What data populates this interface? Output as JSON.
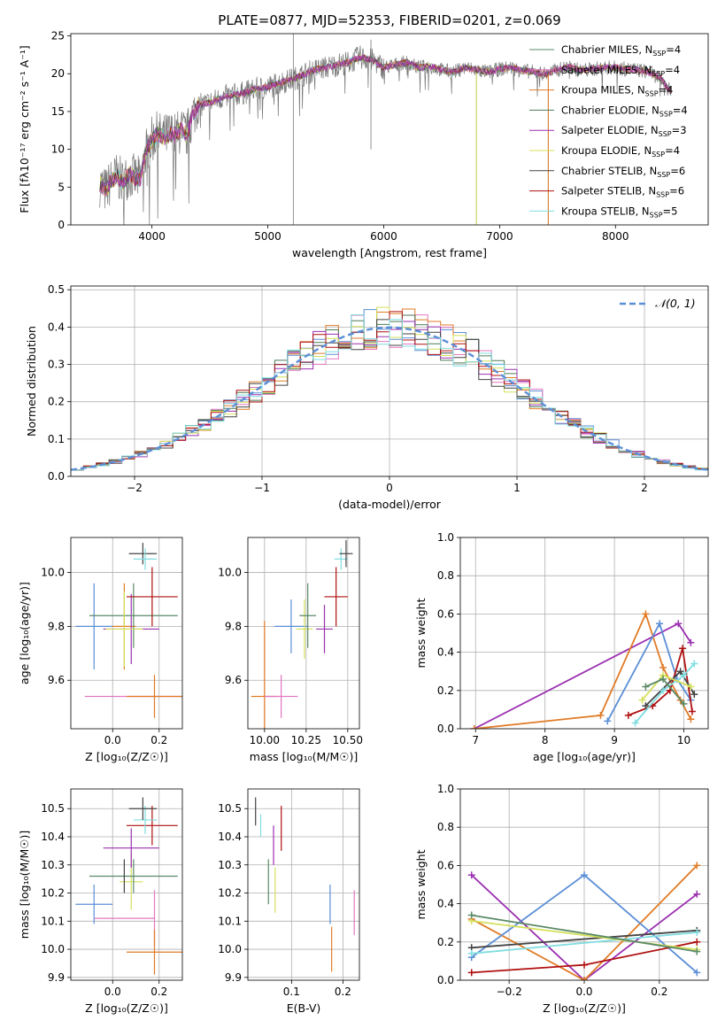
{
  "figure_title": "PLATE=0877, MJD=52353, FIBERID=0201, z=0.069",
  "models": [
    {
      "name": "Chabrier MILES, N",
      "sub": "SSP",
      "count": "=4",
      "color": "#5a8a66"
    },
    {
      "name": "Salpeter MILES, N",
      "sub": "SSP",
      "count": "=4",
      "color": "#e377c2"
    },
    {
      "name": "Kroupa MILES, N",
      "sub": "SSP",
      "count": "=4",
      "color": "#e07b26"
    },
    {
      "name": "Chabrier ELODIE, N",
      "sub": "SSP",
      "count": "=4",
      "color": "#4d7a57"
    },
    {
      "name": "Salpeter ELODIE, N",
      "sub": "SSP",
      "count": "=3",
      "color": "#9b30b0"
    },
    {
      "name": "Kroupa ELODIE, N",
      "sub": "SSP",
      "count": "=4",
      "color": "#d4e05a"
    },
    {
      "name": "Chabrier STELIB, N",
      "sub": "SSP",
      "count": "=6",
      "color": "#444444"
    },
    {
      "name": "Salpeter STELIB, N",
      "sub": "SSP",
      "count": "=6",
      "color": "#b01010"
    },
    {
      "name": "Kroupa STELIB, N",
      "sub": "SSP",
      "count": "=5",
      "color": "#7fdde0"
    }
  ],
  "chart_data": [
    {
      "id": "spectrum",
      "type": "line",
      "xlabel": "wavelength [Angstrom, rest frame]",
      "ylabel": "Flux [fλ10⁻¹⁷ erg cm⁻² s⁻¹ A⁻¹]",
      "xlim": [
        3300,
        8800
      ],
      "ylim": [
        0,
        25.3
      ],
      "xticks": [
        4000,
        5000,
        6000,
        7000,
        8000
      ],
      "yticks": [
        0,
        5,
        10,
        15,
        20,
        25
      ],
      "grid": false,
      "legend": "right",
      "envelope": {
        "x": [
          3550,
          3600,
          3650,
          3700,
          3750,
          3800,
          3850,
          3900,
          3950,
          4000,
          4050,
          4100,
          4150,
          4200,
          4250,
          4300,
          4350,
          4400,
          4450,
          4500,
          4600,
          4700,
          4800,
          4900,
          5000,
          5100,
          5200,
          5300,
          5400,
          5500,
          5600,
          5700,
          5800,
          5900,
          6000,
          6100,
          6200,
          6300,
          6400,
          6500,
          6600,
          6700,
          6800,
          6900,
          7000,
          7100,
          7200,
          7300,
          7400,
          7500,
          7600,
          7700,
          7800,
          7900,
          8000,
          8100,
          8200,
          8300,
          8400,
          8480
        ],
        "y": [
          5.5,
          4.5,
          5.8,
          6.5,
          5.5,
          6.8,
          6.2,
          6.0,
          10.0,
          11.2,
          12.0,
          11.5,
          12.0,
          11.8,
          12.5,
          11.8,
          14.5,
          15.8,
          16.0,
          16.2,
          16.8,
          17.2,
          17.5,
          18.0,
          18.2,
          18.8,
          19.2,
          19.8,
          20.5,
          20.8,
          21.2,
          21.5,
          22.2,
          21.8,
          20.8,
          21.2,
          21.5,
          20.8,
          21.0,
          20.5,
          20.2,
          20.8,
          20.5,
          20.2,
          20.6,
          20.8,
          20.4,
          20.2,
          20.0,
          20.5,
          20.9,
          20.4,
          20.6,
          20.8,
          20.8,
          20.6,
          20.5,
          20.2,
          19.2,
          17.5
        ]
      },
      "spikes": [
        {
          "x": 5220,
          "y0": 0,
          "y1": 25.3
        },
        {
          "x": 5890,
          "y0": 10.0,
          "y1": 24.5
        },
        {
          "x": 6800,
          "y0": 0,
          "y1": 20.0
        },
        {
          "x": 7420,
          "y0": 0,
          "y1": 20.0
        }
      ]
    },
    {
      "id": "residuals",
      "type": "bar",
      "xlabel": "(data-model)/error",
      "ylabel": "Normed distribution",
      "xlim": [
        -2.5,
        2.5
      ],
      "ylim": [
        0,
        0.51
      ],
      "xticks": [
        -2,
        -1,
        0,
        1,
        2
      ],
      "xticklabels": [
        "−2",
        "−1",
        "0",
        "1",
        "2"
      ],
      "yticks": [
        0.0,
        0.1,
        0.2,
        0.3,
        0.4,
        0.5
      ],
      "yticklabels": [
        "0.0",
        "0.1",
        "0.2",
        "0.3",
        "0.4",
        "0.5"
      ],
      "grid": true,
      "legend": "top-right",
      "gaussian_label": "𝒩(0, 1)",
      "gaussian_color": "#5b8fd6",
      "bin_width": 0.1,
      "bin_start": -2.5
    },
    {
      "id": "z-vs-age",
      "type": "scatter",
      "xlabel": "Z [log₁₀(Z/Z☉)]",
      "ylabel": "age  [log₁₀(age/yr)]",
      "xlim": [
        -0.18,
        0.3
      ],
      "ylim": [
        9.42,
        10.13
      ],
      "xticks": [
        0.0,
        0.2
      ],
      "xticklabels": [
        "0.0",
        "0.2"
      ],
      "yticks": [
        9.6,
        9.8,
        10.0
      ],
      "yticklabels": [
        "9.6",
        "9.8",
        "10.0"
      ],
      "grid": true,
      "points": [
        {
          "x": -0.08,
          "y": 9.8,
          "xerr": 0.08,
          "yerr": 0.16,
          "color": "#5b8fd6"
        },
        {
          "x": 0.1,
          "y": 9.54,
          "xerr": 0.22,
          "yerr": 0.0,
          "color": "#e377c2"
        },
        {
          "x": 0.18,
          "y": 9.54,
          "xerr": 0.12,
          "yerr": 0.08,
          "color": "#e07b26"
        },
        {
          "x": 0.05,
          "y": 9.8,
          "xerr": 0.05,
          "yerr": 0.16,
          "color": "#e07b26"
        },
        {
          "x": 0.08,
          "y": 9.79,
          "xerr": 0.12,
          "yerr": 0.13,
          "color": "#9b30b0"
        },
        {
          "x": 0.09,
          "y": 9.84,
          "xerr": 0.19,
          "yerr": 0.12,
          "color": "#5a8a66"
        },
        {
          "x": 0.05,
          "y": 9.79,
          "xerr": 0.08,
          "yerr": 0.14,
          "color": "#d4e05a"
        },
        {
          "x": 0.17,
          "y": 9.91,
          "xerr": 0.11,
          "yerr": 0.11,
          "color": "#b01010"
        },
        {
          "x": 0.13,
          "y": 10.07,
          "xerr": 0.06,
          "yerr": 0.04,
          "color": "#444444"
        },
        {
          "x": 0.14,
          "y": 10.05,
          "xerr": 0.05,
          "yerr": 0.04,
          "color": "#7fdde0"
        }
      ]
    },
    {
      "id": "mass-vs-age",
      "type": "scatter",
      "xlabel": "mass [log₁₀(M/M☉)]",
      "ylabel": "",
      "xlim": [
        9.9,
        10.57
      ],
      "ylim": [
        9.42,
        10.13
      ],
      "xticks": [
        10.0,
        10.25,
        10.5
      ],
      "xticklabels": [
        "10.00",
        "10.25",
        "10.50"
      ],
      "yticks": [
        9.6,
        9.8,
        10.0
      ],
      "yticklabels": [
        "9.6",
        "9.8",
        "10.0"
      ],
      "grid": true,
      "points": [
        {
          "x": 10.0,
          "y": 9.54,
          "xerr": 0.0,
          "yerr": 0.28,
          "color": "#e07b26"
        },
        {
          "x": 10.0,
          "y": 9.54,
          "xerr": 0.08,
          "yerr": 0.0,
          "color": "#e07b26"
        },
        {
          "x": 10.1,
          "y": 9.54,
          "xerr": 0.1,
          "yerr": 0.08,
          "color": "#e377c2"
        },
        {
          "x": 10.16,
          "y": 9.8,
          "xerr": 0.1,
          "yerr": 0.1,
          "color": "#5b8fd6"
        },
        {
          "x": 10.24,
          "y": 9.79,
          "xerr": 0.05,
          "yerr": 0.11,
          "color": "#d4e05a"
        },
        {
          "x": 10.26,
          "y": 9.84,
          "xerr": 0.05,
          "yerr": 0.12,
          "color": "#5a8a66"
        },
        {
          "x": 10.36,
          "y": 9.79,
          "xerr": 0.05,
          "yerr": 0.09,
          "color": "#9b30b0"
        },
        {
          "x": 10.43,
          "y": 9.91,
          "xerr": 0.07,
          "yerr": 0.11,
          "color": "#b01010"
        },
        {
          "x": 10.46,
          "y": 10.05,
          "xerr": 0.04,
          "yerr": 0.04,
          "color": "#7fdde0"
        },
        {
          "x": 10.49,
          "y": 10.07,
          "xerr": 0.04,
          "yerr": 0.05,
          "color": "#444444"
        }
      ]
    },
    {
      "id": "age-vs-weight",
      "type": "line",
      "xlabel": "age  [log₁₀(age/yr)]",
      "ylabel": "mass weight",
      "xlim": [
        6.78,
        10.35
      ],
      "ylim": [
        0,
        1.0
      ],
      "xticks": [
        7,
        8,
        9,
        10
      ],
      "xticklabels": [
        "7",
        "8",
        "9",
        "10"
      ],
      "yticks": [
        0.0,
        0.2,
        0.4,
        0.6,
        0.8,
        1.0
      ],
      "yticklabels": [
        "0.0",
        "0.2",
        "0.4",
        "0.6",
        "0.8",
        "1.0"
      ],
      "grid": true,
      "series": [
        {
          "color": "#9b30b0",
          "x": [
            6.98,
            9.92,
            10.1
          ],
          "y": [
            0.0,
            0.55,
            0.45
          ]
        },
        {
          "color": "#e07b26",
          "x": [
            6.98,
            8.8,
            9.45,
            9.7,
            9.95,
            10.1
          ],
          "y": [
            0.0,
            0.07,
            0.6,
            0.32,
            0.15,
            0.05
          ]
        },
        {
          "color": "#5b8fd6",
          "x": [
            8.9,
            9.65,
            9.9,
            10.1
          ],
          "y": [
            0.04,
            0.55,
            0.26,
            0.15
          ]
        },
        {
          "color": "#b01010",
          "x": [
            9.2,
            9.55,
            9.8,
            9.98,
            10.12
          ],
          "y": [
            0.07,
            0.12,
            0.2,
            0.42,
            0.09
          ]
        },
        {
          "color": "#444444",
          "x": [
            9.45,
            9.95,
            10.15
          ],
          "y": [
            0.12,
            0.3,
            0.18
          ]
        },
        {
          "color": "#7fdde0",
          "x": [
            9.3,
            9.7,
            10.0,
            10.15
          ],
          "y": [
            0.03,
            0.2,
            0.28,
            0.34
          ]
        },
        {
          "color": "#d4e05a",
          "x": [
            9.4,
            9.7,
            10.1
          ],
          "y": [
            0.15,
            0.28,
            0.22
          ]
        },
        {
          "color": "#5a8a66",
          "x": [
            9.45,
            9.7,
            10.0
          ],
          "y": [
            0.22,
            0.26,
            0.13
          ]
        }
      ]
    },
    {
      "id": "z-vs-mass",
      "type": "scatter",
      "xlabel": "Z [log₁₀(Z/Z☉)]",
      "ylabel": "mass [log₁₀(M/M☉)]",
      "xlim": [
        -0.18,
        0.3
      ],
      "ylim": [
        9.89,
        10.57
      ],
      "xticks": [
        0.0,
        0.2
      ],
      "xticklabels": [
        "0.0",
        "0.2"
      ],
      "yticks": [
        9.9,
        10.0,
        10.1,
        10.2,
        10.3,
        10.4,
        10.5
      ],
      "yticklabels": [
        "9.9",
        "10.0",
        "10.1",
        "10.2",
        "10.3",
        "10.4",
        "10.5"
      ],
      "grid": true,
      "points": [
        {
          "x": -0.08,
          "y": 10.16,
          "xerr": 0.08,
          "yerr": 0.07,
          "color": "#5b8fd6"
        },
        {
          "x": 0.05,
          "y": 10.11,
          "xerr": 0.13,
          "yerr": 0.0,
          "color": "#e377c2"
        },
        {
          "x": 0.18,
          "y": 10.11,
          "xerr": 0.0,
          "yerr": 0.1,
          "color": "#e377c2"
        },
        {
          "x": 0.18,
          "y": 9.99,
          "xerr": 0.12,
          "yerr": 0.08,
          "color": "#e07b26"
        },
        {
          "x": 0.08,
          "y": 10.24,
          "xerr": 0.05,
          "yerr": 0.1,
          "color": "#d4e05a"
        },
        {
          "x": 0.09,
          "y": 10.26,
          "xerr": 0.19,
          "yerr": 0.06,
          "color": "#5a8a66"
        },
        {
          "x": 0.05,
          "y": 10.26,
          "xerr": 0.0,
          "yerr": 0.06,
          "color": "#444444"
        },
        {
          "x": 0.08,
          "y": 10.36,
          "xerr": 0.12,
          "yerr": 0.07,
          "color": "#9b30b0"
        },
        {
          "x": 0.17,
          "y": 10.44,
          "xerr": 0.11,
          "yerr": 0.07,
          "color": "#b01010"
        },
        {
          "x": 0.14,
          "y": 10.46,
          "xerr": 0.05,
          "yerr": 0.05,
          "color": "#7fdde0"
        },
        {
          "x": 0.13,
          "y": 10.5,
          "xerr": 0.06,
          "yerr": 0.04,
          "color": "#444444"
        }
      ]
    },
    {
      "id": "ebv-vs-mass",
      "type": "scatter",
      "xlabel": "E(B-V)",
      "ylabel": "",
      "xlim": [
        0.015,
        0.232
      ],
      "ylim": [
        9.89,
        10.57
      ],
      "xticks": [
        0.1,
        0.2
      ],
      "xticklabels": [
        "0.1",
        "0.2"
      ],
      "yticks": [
        9.9,
        10.0,
        10.1,
        10.2,
        10.3,
        10.4,
        10.5
      ],
      "yticklabels": [
        "9.9",
        "10.0",
        "10.1",
        "10.2",
        "10.3",
        "10.4",
        "10.5"
      ],
      "grid": true,
      "points": [
        {
          "x": 0.03,
          "y": 10.49,
          "xerr": 0.0,
          "yerr": 0.05,
          "color": "#444444"
        },
        {
          "x": 0.04,
          "y": 10.44,
          "xerr": 0.0,
          "yerr": 0.04,
          "color": "#7fdde0"
        },
        {
          "x": 0.055,
          "y": 10.24,
          "xerr": 0.0,
          "yerr": 0.08,
          "color": "#5a8a66"
        },
        {
          "x": 0.065,
          "y": 10.37,
          "xerr": 0.0,
          "yerr": 0.07,
          "color": "#9b30b0"
        },
        {
          "x": 0.068,
          "y": 10.21,
          "xerr": 0.0,
          "yerr": 0.08,
          "color": "#d4e05a"
        },
        {
          "x": 0.08,
          "y": 10.43,
          "xerr": 0.0,
          "yerr": 0.08,
          "color": "#b01010"
        },
        {
          "x": 0.175,
          "y": 10.16,
          "xerr": 0.0,
          "yerr": 0.07,
          "color": "#5b8fd6"
        },
        {
          "x": 0.178,
          "y": 10.0,
          "xerr": 0.0,
          "yerr": 0.08,
          "color": "#e07b26"
        },
        {
          "x": 0.222,
          "y": 10.13,
          "xerr": 0.0,
          "yerr": 0.08,
          "color": "#e377c2"
        }
      ]
    },
    {
      "id": "z-vs-weight",
      "type": "line",
      "xlabel": "Z [log₁₀(Z/Z☉)]",
      "ylabel": "mass weight",
      "xlim": [
        -0.33,
        0.33
      ],
      "ylim": [
        0,
        1.0
      ],
      "xticks": [
        -0.2,
        0.0,
        0.2
      ],
      "xticklabels": [
        "−0.2",
        "0.0",
        "0.2"
      ],
      "yticks": [
        0.0,
        0.2,
        0.4,
        0.6,
        0.8,
        1.0
      ],
      "yticklabels": [
        "0.0",
        "0.2",
        "0.4",
        "0.6",
        "0.8",
        "1.0"
      ],
      "grid": true,
      "series": [
        {
          "color": "#9b30b0",
          "x": [
            -0.3,
            0.0,
            0.3
          ],
          "y": [
            0.55,
            0.0,
            0.45
          ]
        },
        {
          "color": "#e07b26",
          "x": [
            -0.3,
            0.0,
            0.3
          ],
          "y": [
            0.32,
            0.0,
            0.6
          ]
        },
        {
          "color": "#5b8fd6",
          "x": [
            -0.3,
            0.0,
            0.3
          ],
          "y": [
            0.12,
            0.55,
            0.04
          ]
        },
        {
          "color": "#b01010",
          "x": [
            -0.3,
            0.0,
            0.3
          ],
          "y": [
            0.04,
            0.08,
            0.2
          ]
        },
        {
          "color": "#444444",
          "x": [
            -0.3,
            0.3
          ],
          "y": [
            0.17,
            0.26
          ]
        },
        {
          "color": "#7fdde0",
          "x": [
            -0.3,
            0.3
          ],
          "y": [
            0.14,
            0.25
          ]
        },
        {
          "color": "#d4e05a",
          "x": [
            -0.3,
            0.3
          ],
          "y": [
            0.31,
            0.16
          ]
        },
        {
          "color": "#5a8a66",
          "x": [
            -0.3,
            0.3
          ],
          "y": [
            0.34,
            0.15
          ]
        }
      ]
    }
  ]
}
